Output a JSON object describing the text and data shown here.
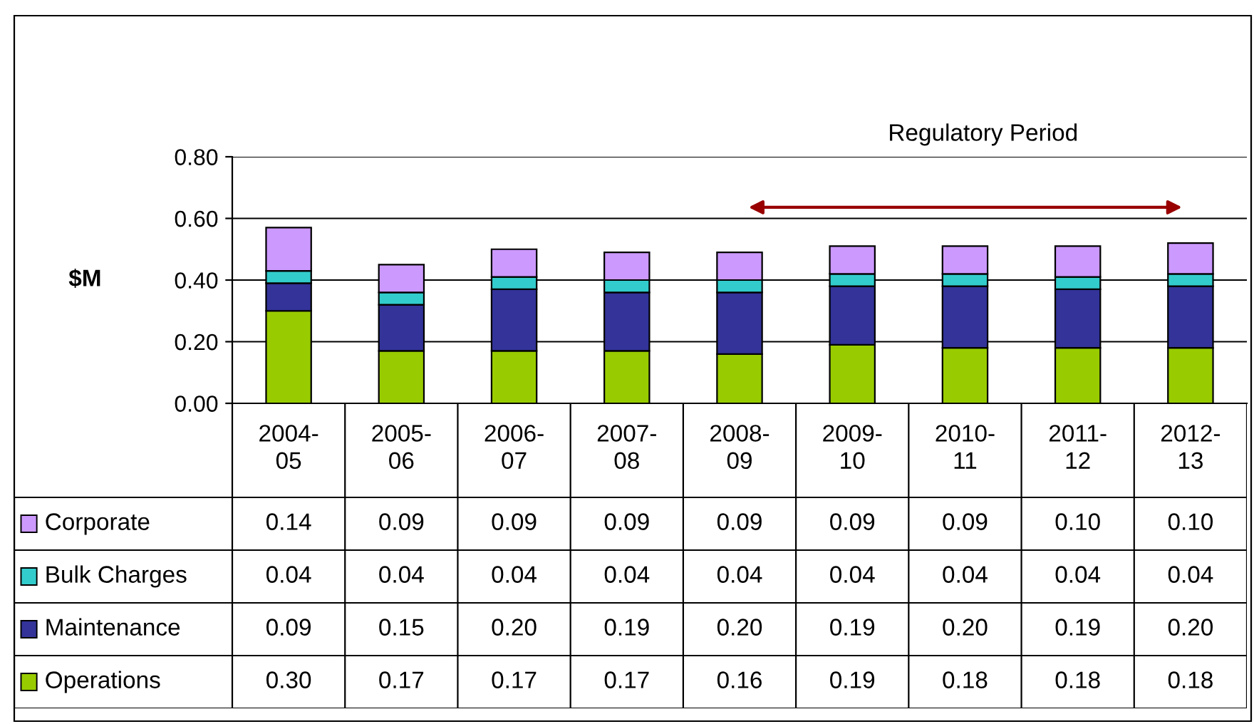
{
  "chart_data": {
    "type": "bar",
    "stacked": true,
    "ylabel": "$M",
    "categories": [
      "2004-\n05",
      "2005-\n06",
      "2006-\n07",
      "2007-\n08",
      "2008-\n09",
      "2009-\n10",
      "2010-\n11",
      "2011-\n12",
      "2012-\n13"
    ],
    "series": [
      {
        "name": "Operations",
        "color": "#99cc00",
        "values": [
          0.3,
          0.17,
          0.17,
          0.17,
          0.16,
          0.19,
          0.18,
          0.18,
          0.18
        ],
        "value_labels": [
          "0.30",
          "0.17",
          "0.17",
          "0.17",
          "0.16",
          "0.19",
          "0.18",
          "0.18",
          "0.18"
        ]
      },
      {
        "name": "Maintenance",
        "color": "#333399",
        "values": [
          0.09,
          0.15,
          0.2,
          0.19,
          0.2,
          0.19,
          0.2,
          0.19,
          0.2
        ],
        "value_labels": [
          "0.09",
          "0.15",
          "0.20",
          "0.19",
          "0.20",
          "0.19",
          "0.20",
          "0.19",
          "0.20"
        ]
      },
      {
        "name": "Bulk Charges",
        "color": "#33cccc",
        "values": [
          0.04,
          0.04,
          0.04,
          0.04,
          0.04,
          0.04,
          0.04,
          0.04,
          0.04
        ],
        "value_labels": [
          "0.04",
          "0.04",
          "0.04",
          "0.04",
          "0.04",
          "0.04",
          "0.04",
          "0.04",
          "0.04"
        ]
      },
      {
        "name": "Corporate",
        "color": "#cc99ff",
        "values": [
          0.14,
          0.09,
          0.09,
          0.09,
          0.09,
          0.09,
          0.09,
          0.1,
          0.1
        ],
        "value_labels": [
          "0.14",
          "0.09",
          "0.09",
          "0.09",
          "0.09",
          "0.09",
          "0.09",
          "0.10",
          "0.10"
        ]
      }
    ],
    "ylim": [
      0,
      0.8
    ],
    "yticks": [
      {
        "value": 0,
        "label": "0.00"
      },
      {
        "value": 0.2,
        "label": "0.20"
      },
      {
        "value": 0.4,
        "label": "0.40"
      },
      {
        "value": 0.6,
        "label": "0.60"
      },
      {
        "value": 0.8,
        "label": "0.80"
      }
    ],
    "grid": "y",
    "legend": "bottom left",
    "annotations": [
      "Regulatory Period"
    ]
  }
}
